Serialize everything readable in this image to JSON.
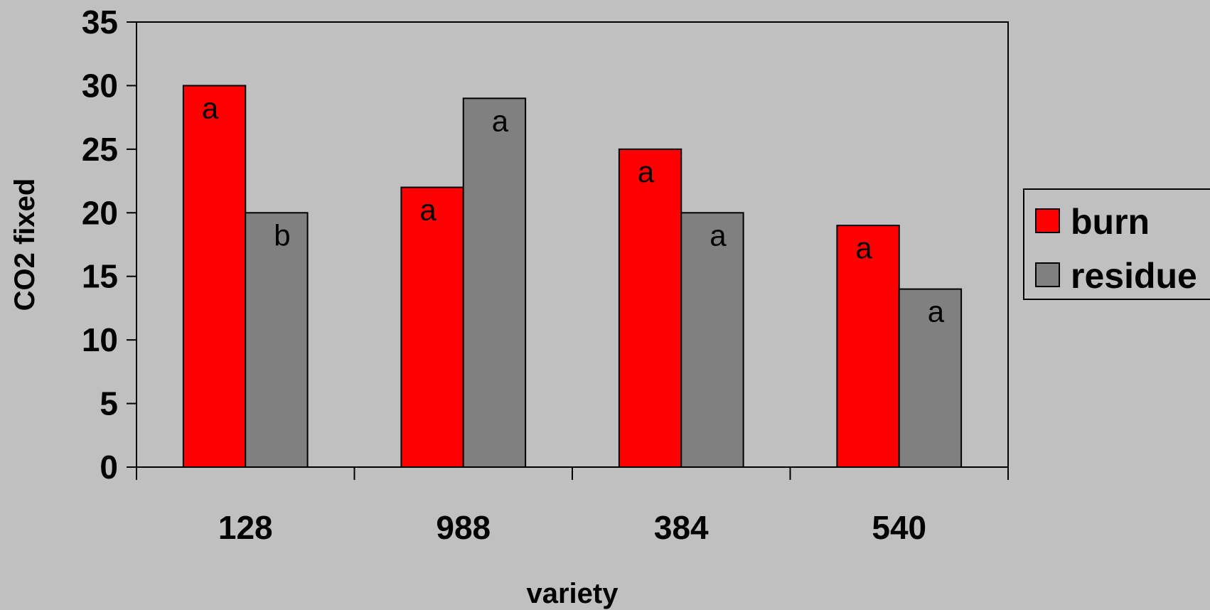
{
  "chart_data": {
    "type": "bar",
    "categories": [
      "128",
      "988",
      "384",
      "540"
    ],
    "series": [
      {
        "name": "burn",
        "color": "#ff0000",
        "values": [
          30,
          22,
          25,
          19
        ],
        "labels": [
          "a",
          "a",
          "a",
          "a"
        ]
      },
      {
        "name": "residue",
        "color": "#808080",
        "values": [
          20,
          29,
          20,
          14
        ],
        "labels": [
          "b",
          "a",
          "a",
          "a"
        ]
      }
    ],
    "xlabel": "variety",
    "ylabel": "CO2 fixed",
    "ylim": [
      0,
      35
    ],
    "yticks": [
      "0",
      "5",
      "10",
      "15",
      "20",
      "25",
      "30",
      "35"
    ],
    "grid": false,
    "legend": {
      "position": "right",
      "entries": [
        "burn",
        "residue"
      ]
    },
    "background": "#c0c0c0"
  }
}
